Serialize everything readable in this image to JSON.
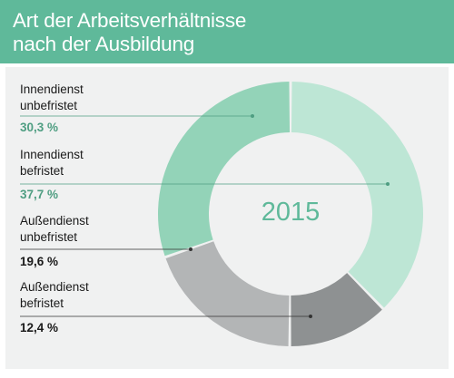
{
  "header": {
    "title_line1": "Art der Arbeitsverhältnisse",
    "title_line2": "nach der Ausbildung"
  },
  "chart_data": {
    "type": "pie",
    "center_label": "2015",
    "series": [
      {
        "name": "Innendienst unbefristet",
        "label_lines": [
          "Innendienst",
          "unbefristet"
        ],
        "value": 30.3,
        "value_label": "30,3 %",
        "color": "#93d3b8",
        "label_color": "#4f9e82"
      },
      {
        "name": "Innendienst befristet",
        "label_lines": [
          "Innendienst",
          "befristet"
        ],
        "value": 37.7,
        "value_label": "37,7 %",
        "color": "#bde6d5",
        "label_color": "#4f9e82"
      },
      {
        "name": "Außendienst unbefristet",
        "label_lines": [
          "Außendienst",
          "unbefristet"
        ],
        "value": 19.6,
        "value_label": "19,6 %",
        "color": "#b3b5b6",
        "label_color": "#1a1a1a"
      },
      {
        "name": "Außendienst befristet",
        "label_lines": [
          "Außendienst",
          "befristet"
        ],
        "value": 12.4,
        "value_label": "12,4 %",
        "color": "#8e9192",
        "label_color": "#1a1a1a"
      }
    ]
  }
}
